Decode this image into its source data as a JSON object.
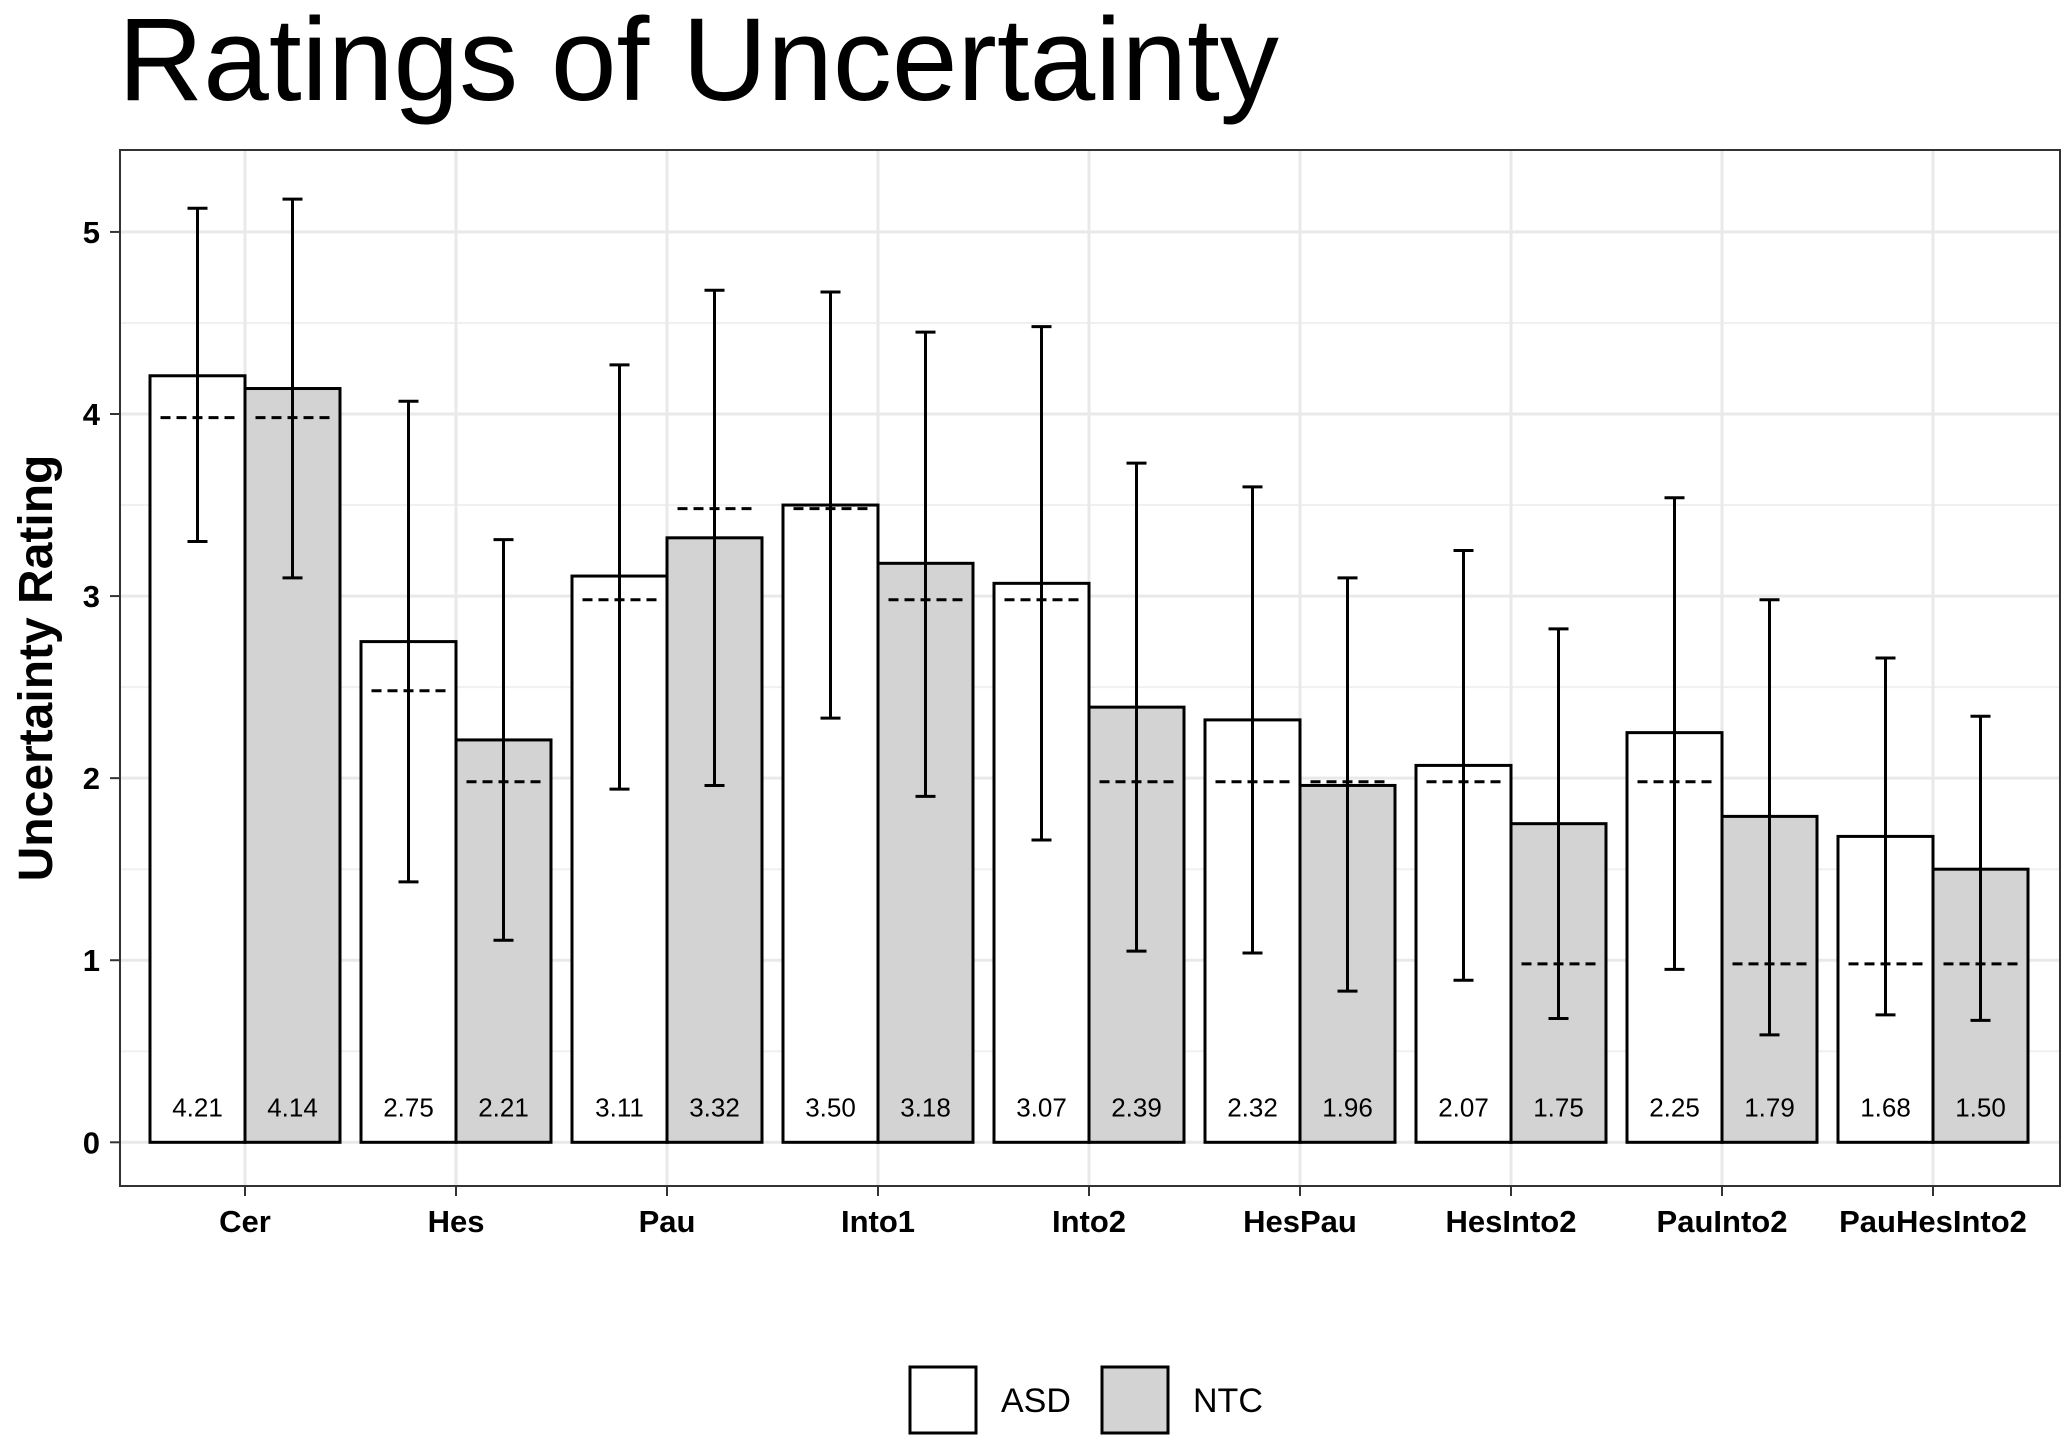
{
  "chart_data": {
    "type": "bar",
    "title": "Ratings of Uncertainty",
    "xlabel": "",
    "ylabel": "Uncertainty Rating",
    "ylim": [
      -0.24,
      5.45
    ],
    "yticks": [
      "0",
      "1",
      "2",
      "3",
      "4",
      "5"
    ],
    "grid": true,
    "legend_position": "bottom",
    "categories": [
      "Cer",
      "Hes",
      "Pau",
      "Into1",
      "Into2",
      "HesPau",
      "HesInto2",
      "PauInto2",
      "PauHesInto2"
    ],
    "series": [
      {
        "name": "ASD",
        "color": "#ffffff",
        "values": [
          4.21,
          2.75,
          3.11,
          3.5,
          3.07,
          2.32,
          2.07,
          2.25,
          1.68
        ],
        "labels": [
          "4.21",
          "2.75",
          "3.11",
          "3.50",
          "3.07",
          "2.32",
          "2.07",
          "2.25",
          "1.68"
        ],
        "err_low": [
          3.3,
          1.43,
          1.94,
          2.33,
          1.66,
          1.04,
          0.89,
          0.95,
          0.7
        ],
        "err_high": [
          5.13,
          4.07,
          4.27,
          4.67,
          4.48,
          3.6,
          3.25,
          3.54,
          2.66
        ],
        "reference": [
          3.98,
          2.48,
          2.98,
          3.48,
          2.98,
          1.98,
          1.98,
          1.98,
          0.98
        ]
      },
      {
        "name": "NTC",
        "color": "#d3d3d3",
        "values": [
          4.14,
          2.21,
          3.32,
          3.18,
          2.39,
          1.96,
          1.75,
          1.79,
          1.5
        ],
        "labels": [
          "4.14",
          "2.21",
          "3.32",
          "3.18",
          "2.39",
          "1.96",
          "1.75",
          "1.79",
          "1.50"
        ],
        "err_low": [
          3.1,
          1.11,
          1.96,
          1.9,
          1.05,
          0.83,
          0.68,
          0.59,
          0.67
        ],
        "err_high": [
          5.18,
          3.31,
          4.68,
          4.45,
          3.73,
          3.1,
          2.82,
          2.98,
          2.34
        ],
        "reference": [
          3.98,
          1.98,
          3.48,
          2.98,
          1.98,
          1.98,
          0.98,
          0.98,
          0.98
        ]
      }
    ]
  }
}
